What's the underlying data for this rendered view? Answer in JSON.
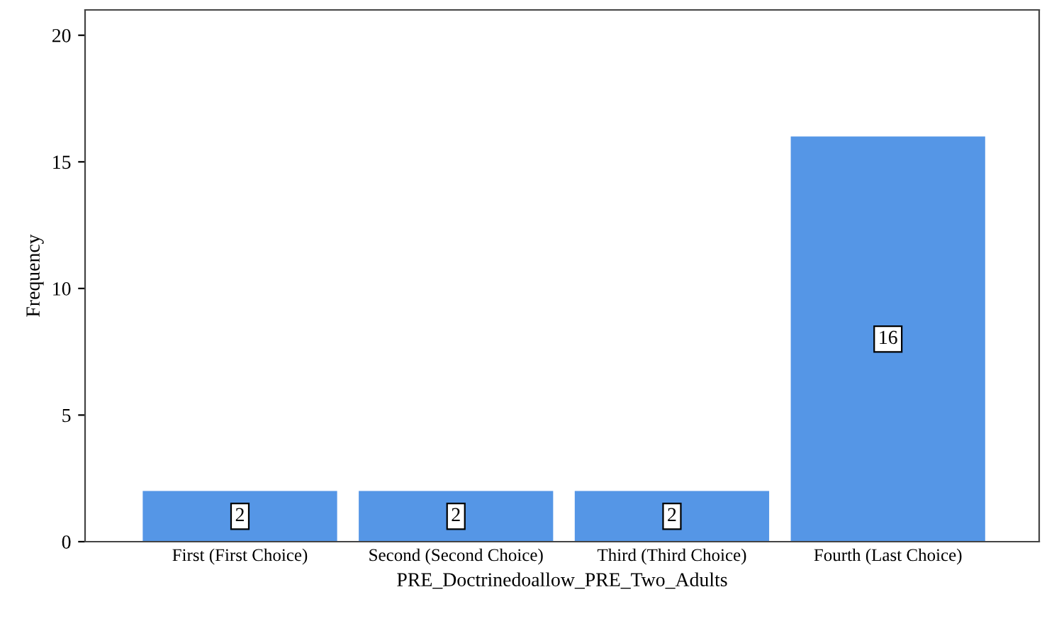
{
  "chart_data": {
    "type": "bar",
    "xlabel": "PRE_Doctrinedoallow_PRE_Two_Adults",
    "ylabel": "Frequency",
    "categories": [
      "First (First Choice)",
      "Second (Second Choice)",
      "Third (Third Choice)",
      "Fourth (Last Choice)"
    ],
    "values": [
      2,
      2,
      2,
      16
    ],
    "color": "#5596e6",
    "ylim": [
      0,
      21
    ],
    "yticks": [
      0,
      5,
      10,
      15,
      20
    ],
    "grid": false,
    "legend": false,
    "data_labels": true
  }
}
